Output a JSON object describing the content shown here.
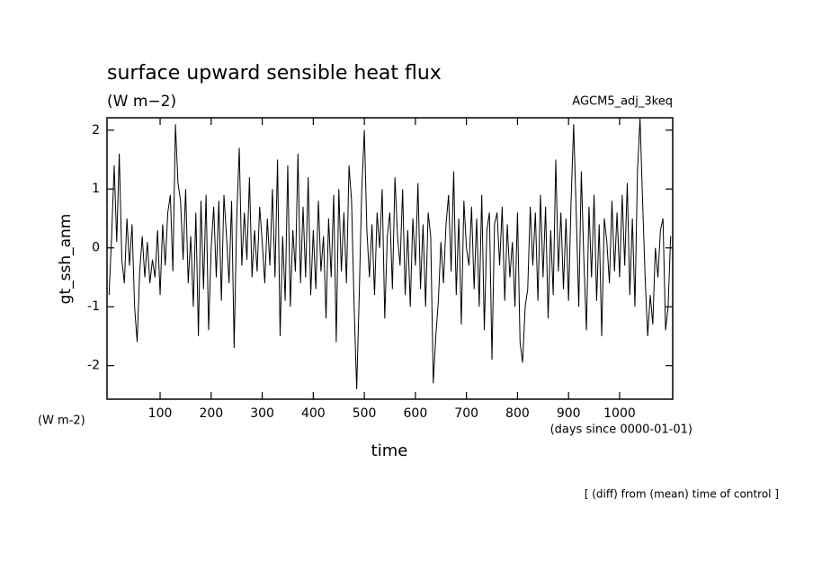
{
  "chart_data": {
    "type": "line",
    "title": "surface upward sensible heat flux",
    "subtitle": "(W m−2)",
    "experiment": "AGCM5_adj_3keq",
    "y_label": "gt_ssh_anm",
    "y_unit": "(W m-2)",
    "x_label": "time",
    "x_unit": "(days since 0000-01-01)",
    "footnote": "[ (diff) from (mean) time of control ]",
    "color": "#000000",
    "xlim": [
      -4,
      1104
    ],
    "xticks": [
      100,
      200,
      300,
      400,
      500,
      600,
      700,
      800,
      900,
      1000
    ],
    "ylim": [
      -2.57,
      2.21
    ],
    "yticks": [
      -2,
      -1,
      0,
      1,
      2
    ],
    "x": [
      0,
      5,
      10,
      15,
      20,
      25,
      30,
      35,
      40,
      45,
      50,
      55,
      60,
      65,
      70,
      75,
      80,
      85,
      90,
      95,
      100,
      105,
      110,
      115,
      120,
      125,
      130,
      135,
      140,
      145,
      150,
      155,
      160,
      165,
      170,
      175,
      180,
      185,
      190,
      195,
      200,
      205,
      210,
      215,
      220,
      225,
      230,
      235,
      240,
      245,
      250,
      255,
      260,
      265,
      270,
      275,
      280,
      285,
      290,
      295,
      300,
      305,
      310,
      315,
      320,
      325,
      330,
      335,
      340,
      345,
      350,
      355,
      360,
      365,
      370,
      375,
      380,
      385,
      390,
      395,
      400,
      405,
      410,
      415,
      420,
      425,
      430,
      435,
      440,
      445,
      450,
      455,
      460,
      465,
      470,
      475,
      480,
      485,
      490,
      495,
      500,
      505,
      510,
      515,
      520,
      525,
      530,
      535,
      540,
      545,
      550,
      555,
      560,
      565,
      570,
      575,
      580,
      585,
      590,
      595,
      600,
      605,
      610,
      615,
      620,
      625,
      630,
      635,
      640,
      645,
      650,
      655,
      660,
      665,
      670,
      675,
      680,
      685,
      690,
      695,
      700,
      705,
      710,
      715,
      720,
      725,
      730,
      735,
      740,
      745,
      750,
      755,
      760,
      765,
      770,
      775,
      780,
      785,
      790,
      795,
      800,
      805,
      810,
      815,
      820,
      825,
      830,
      835,
      840,
      845,
      850,
      855,
      860,
      865,
      870,
      875,
      880,
      885,
      890,
      895,
      900,
      905,
      910,
      915,
      920,
      925,
      930,
      935,
      940,
      945,
      950,
      955,
      960,
      965,
      970,
      975,
      980,
      985,
      990,
      995,
      1000,
      1005,
      1010,
      1015,
      1020,
      1025,
      1030,
      1035,
      1040,
      1045,
      1050,
      1055,
      1060,
      1065,
      1070,
      1075,
      1080,
      1085,
      1090,
      1095,
      1100
    ],
    "values": [
      -0.8,
      0.2,
      1.4,
      0.1,
      1.6,
      -0.2,
      -0.6,
      0.5,
      -0.3,
      0.4,
      -1.0,
      -1.6,
      -0.4,
      0.2,
      -0.5,
      0.1,
      -0.6,
      -0.2,
      -0.5,
      0.3,
      -0.8,
      0.4,
      -0.3,
      0.6,
      0.9,
      -0.4,
      2.1,
      1.1,
      0.8,
      -0.2,
      1.0,
      -0.6,
      0.2,
      -1.0,
      0.6,
      -1.5,
      0.8,
      -0.7,
      0.9,
      -1.4,
      0.0,
      0.7,
      -0.5,
      0.8,
      -0.9,
      0.9,
      0.2,
      -0.6,
      0.8,
      -1.7,
      0.5,
      1.7,
      -0.3,
      0.6,
      -0.2,
      1.2,
      -0.5,
      0.3,
      -0.4,
      0.7,
      0.1,
      -0.6,
      0.5,
      -0.3,
      1.0,
      -0.5,
      1.5,
      -1.5,
      0.2,
      -0.9,
      1.4,
      -1.0,
      0.3,
      -0.4,
      1.6,
      -0.6,
      0.7,
      -0.5,
      1.2,
      -0.8,
      0.3,
      -0.7,
      0.8,
      -0.4,
      0.2,
      -1.2,
      0.5,
      -0.5,
      0.9,
      -1.6,
      1.0,
      -0.4,
      0.6,
      -0.6,
      1.4,
      0.8,
      -1.0,
      -2.4,
      -0.8,
      1.0,
      2.0,
      0.3,
      -0.5,
      0.4,
      -0.8,
      0.6,
      0.0,
      1.0,
      -1.2,
      0.2,
      0.6,
      -0.7,
      1.2,
      0.2,
      -0.3,
      1.0,
      -0.8,
      0.3,
      -1.0,
      0.5,
      -0.3,
      1.1,
      -0.7,
      0.4,
      -1.0,
      0.6,
      0.2,
      -2.3,
      -1.5,
      -0.9,
      0.1,
      -0.6,
      0.4,
      0.9,
      -0.4,
      1.3,
      -0.8,
      0.5,
      -1.3,
      0.8,
      0.0,
      -0.3,
      0.7,
      -0.7,
      0.5,
      -1.0,
      0.9,
      -1.4,
      0.3,
      0.6,
      -1.9,
      0.4,
      0.6,
      -0.3,
      0.7,
      -0.9,
      0.4,
      -0.5,
      0.1,
      -1.0,
      0.6,
      -1.6,
      -1.95,
      -1.0,
      -0.7,
      0.7,
      -0.3,
      0.6,
      -0.9,
      0.9,
      -0.5,
      0.7,
      -1.2,
      0.3,
      -0.8,
      1.5,
      -0.4,
      0.6,
      -0.7,
      0.5,
      -0.9,
      0.8,
      2.1,
      0.6,
      -1.0,
      1.3,
      -0.2,
      -1.4,
      0.7,
      -0.5,
      0.9,
      -0.9,
      0.4,
      -1.5,
      0.5,
      0.1,
      -0.6,
      0.8,
      -0.4,
      0.6,
      -0.5,
      0.9,
      -0.3,
      1.1,
      -0.8,
      0.5,
      -1.0,
      1.3,
      2.2,
      0.8,
      -0.5,
      -1.5,
      -0.8,
      -1.3,
      0.0,
      -0.5,
      0.3,
      0.5,
      -1.4,
      -1.0,
      0.2
    ]
  }
}
